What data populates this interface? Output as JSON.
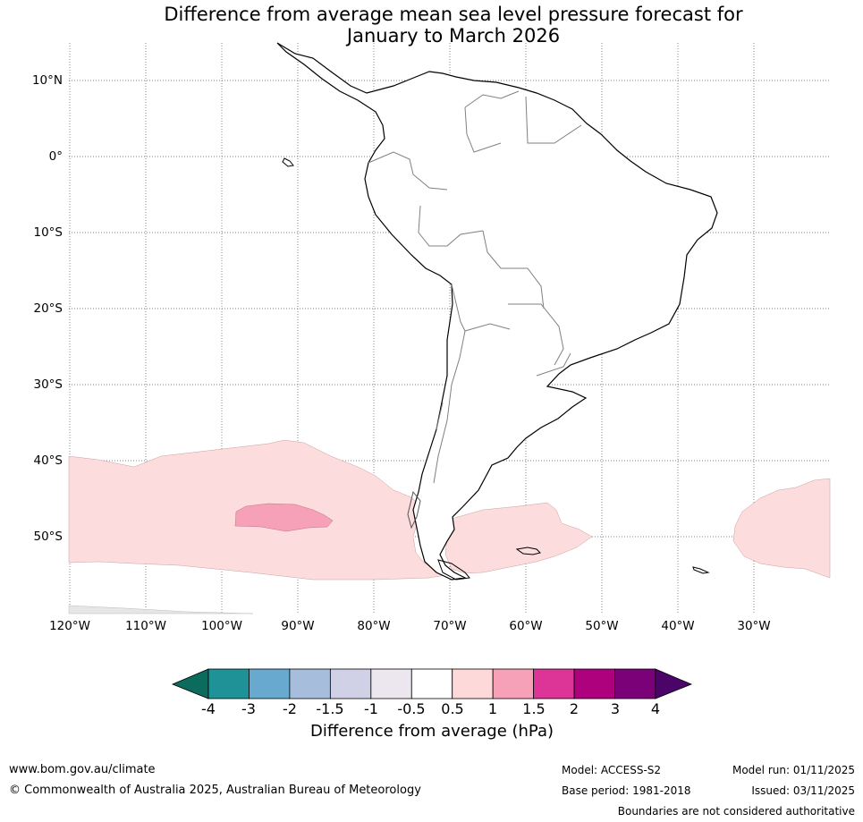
{
  "title": {
    "line1": "Difference from average mean sea level pressure forecast for",
    "line2": "January to March 2026"
  },
  "map": {
    "lat_labels": [
      "10°N",
      "0°",
      "10°S",
      "20°S",
      "30°S",
      "40°S",
      "50°S"
    ],
    "lon_labels": [
      "120°W",
      "110°W",
      "100°W",
      "90°W",
      "80°W",
      "70°W",
      "60°W",
      "50°W",
      "40°W",
      "30°W"
    ],
    "anomaly_regions": [
      {
        "name": "southern-pacific-band",
        "category": "0.5 to 1",
        "color": "#fcdcdc"
      },
      {
        "name": "pacific-core-anomaly",
        "category": "1 to 1.5",
        "color": "#f7a1b9"
      },
      {
        "name": "south-atlantic-anomaly",
        "category": "0.5 to 1",
        "color": "#fcdcdc"
      },
      {
        "name": "southern-edge-negative",
        "category": "-1 to -0.5",
        "color": "#e6e6e6"
      }
    ],
    "colors": {
      "coast": "#000000",
      "borders": "#808080",
      "gridlines": "#555555"
    }
  },
  "colorbar": {
    "title": "Difference from average (hPa)",
    "ticks": [
      "-4",
      "-3",
      "-2",
      "-1.5",
      "-1",
      "-0.5",
      "0.5",
      "1",
      "1.5",
      "2",
      "3",
      "4"
    ],
    "low_extend_color": "#0b6b5c",
    "high_extend_color": "#4b0568",
    "colors": [
      "#1f9297",
      "#67a9cf",
      "#a6bddb",
      "#d0d1e6",
      "#ece7ee",
      "#ffffff",
      "#fdd9d9",
      "#f7a1b9",
      "#dd3497",
      "#ae017e",
      "#7a0177"
    ]
  },
  "footer": {
    "website": "www.bom.gov.au/climate",
    "copyright": "© Commonwealth of Australia 2025, Australian Bureau of Meteorology",
    "model": "Model: ACCESS-S2",
    "base_period": "Base period: 1981-2018",
    "model_run": "Model run: 01/11/2025",
    "issued": "Issued: 03/11/2025",
    "disclaimer": "Boundaries are not considered authoritative"
  }
}
